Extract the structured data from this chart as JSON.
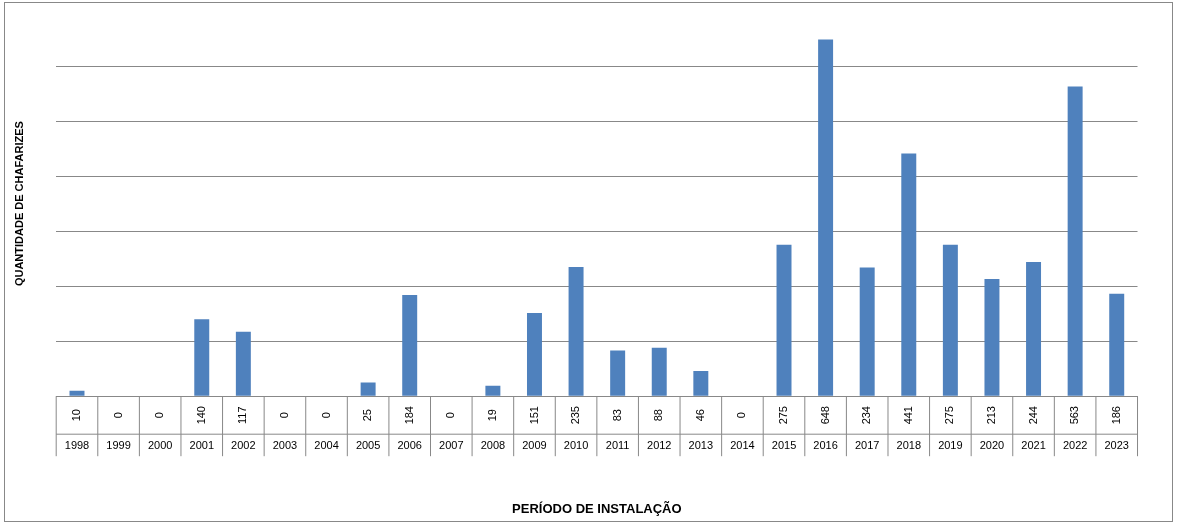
{
  "chart_data": {
    "type": "bar",
    "xlabel": "PERÍODO DE INSTALAÇÃO",
    "ylabel": "QUANTIDADE DE CHAFARIZES",
    "categories": [
      "1998",
      "1999",
      "2000",
      "2001",
      "2002",
      "2003",
      "2004",
      "2005",
      "2006",
      "2007",
      "2008",
      "2009",
      "2010",
      "2011",
      "2012",
      "2013",
      "2014",
      "2015",
      "2016",
      "2017",
      "2018",
      "2019",
      "2020",
      "2021",
      "2022",
      "2023"
    ],
    "values": [
      10,
      0,
      0,
      140,
      117,
      0,
      0,
      25,
      184,
      0,
      19,
      151,
      235,
      83,
      88,
      46,
      0,
      275,
      648,
      234,
      441,
      275,
      213,
      244,
      563,
      186
    ],
    "color": "#4f81bd",
    "yticks": [
      {
        "value": 0,
        "label": null
      },
      {
        "value": 100,
        "label": null
      },
      {
        "value": 200,
        "label": null
      },
      {
        "value": 300,
        "label": null
      },
      {
        "value": 400,
        "label": null
      },
      {
        "value": 500,
        "label": null
      },
      {
        "value": 600,
        "label": null
      }
    ],
    "grid": "y",
    "tick_labels": "x",
    "data_labels": true,
    "legend": false
  }
}
